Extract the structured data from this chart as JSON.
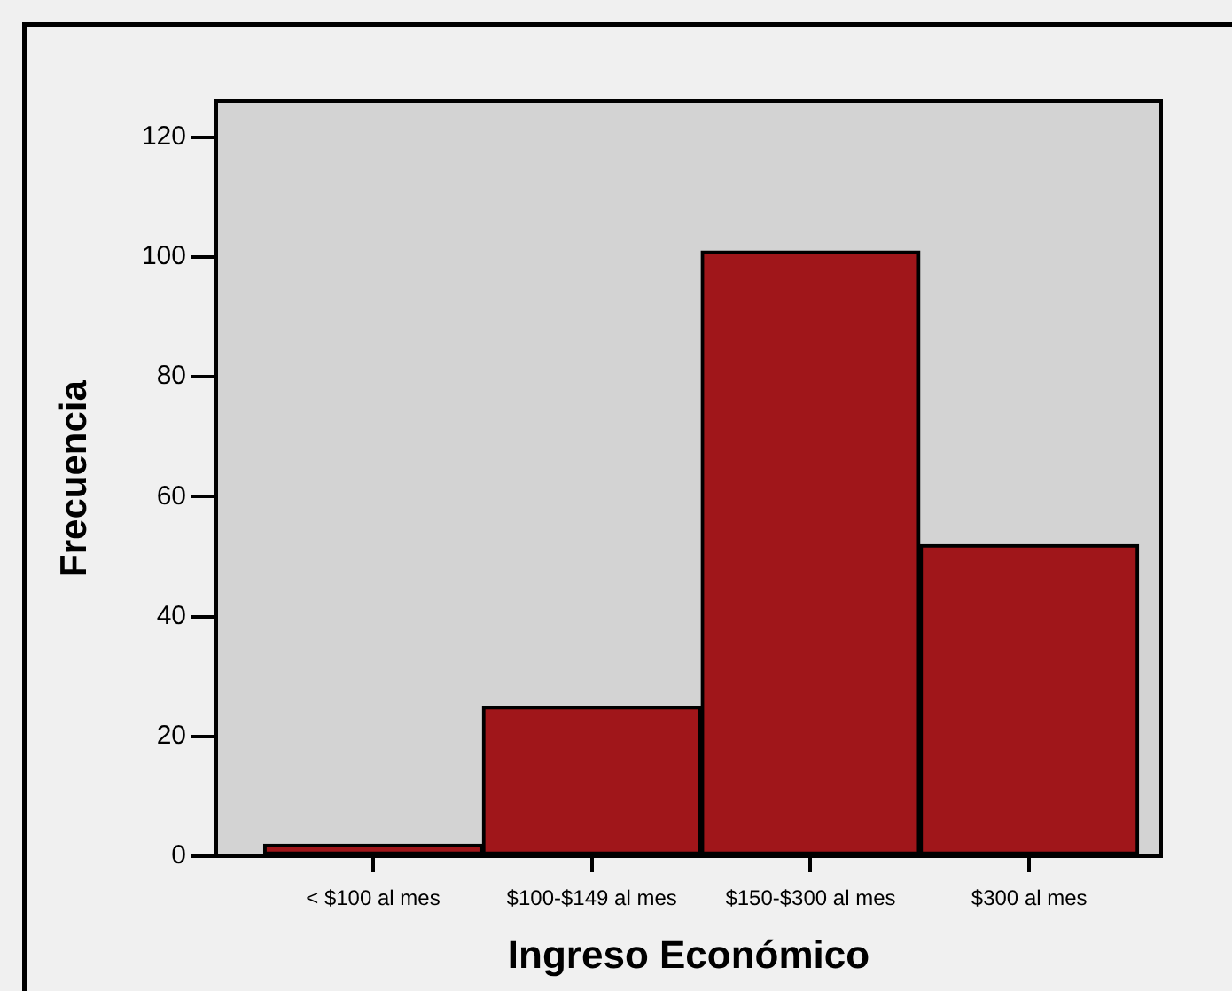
{
  "chart_data": {
    "type": "bar",
    "xlabel": "Ingreso Económico",
    "ylabel": "Frecuencia",
    "categories": [
      "< $100 al mes",
      "$100-$149 al mes",
      "$150-$300 al mes",
      "$300 al mes"
    ],
    "values": [
      2,
      25,
      101,
      52
    ],
    "color": "#a0161a",
    "ylim": [
      0,
      126
    ],
    "yticks": [
      0,
      20,
      40,
      60,
      80,
      100,
      120
    ],
    "grid": false,
    "legend": false
  }
}
